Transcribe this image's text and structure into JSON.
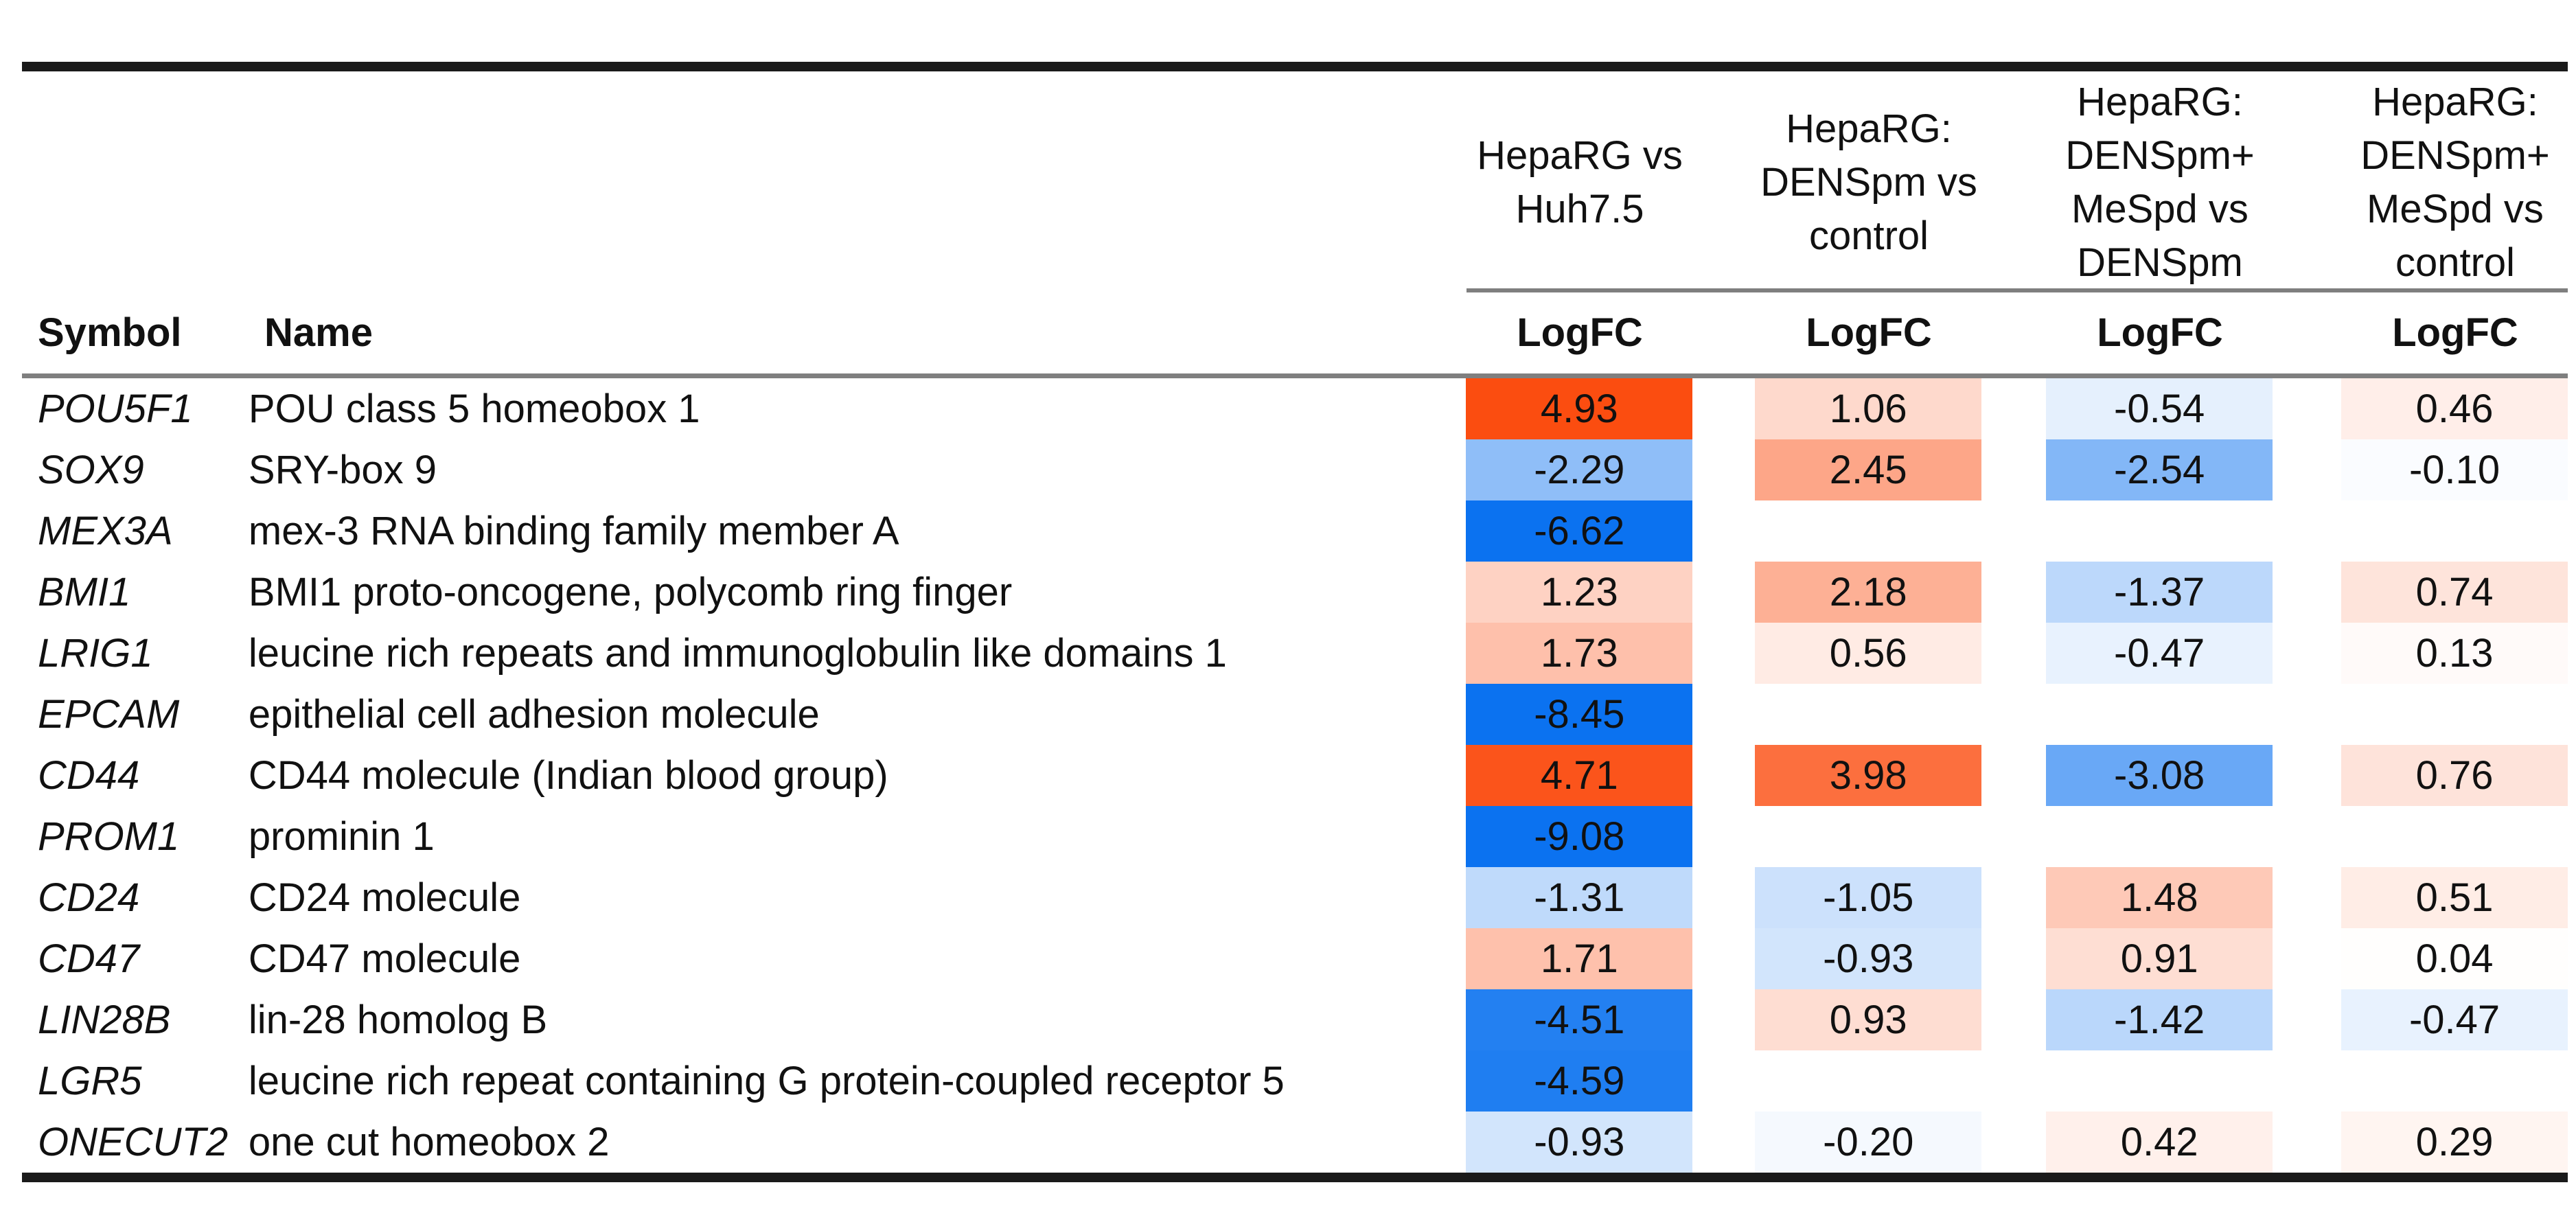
{
  "chart_data": {
    "type": "heatmap",
    "title": "",
    "value_metric": "LogFC",
    "header": {
      "symbol_label": "Symbol",
      "name_label": "Name",
      "groups": [
        {
          "label": "HepaRG vs Huh7.5",
          "lines": [
            "HepaRG vs",
            "Huh7.5"
          ],
          "metric": "LogFC"
        },
        {
          "label": "HepaRG: DENSpm vs control",
          "lines": [
            "HepaRG:",
            "DENSpm vs",
            "control"
          ],
          "metric": "LogFC"
        },
        {
          "label": "HepaRG: DENSpm+MeSpd vs DENSpm",
          "lines": [
            "HepaRG:",
            "DENSpm+",
            "MeSpd vs",
            "DENSpm"
          ],
          "metric": "LogFC"
        },
        {
          "label": "HepaRG: DENSpm+MeSpd vs control",
          "lines": [
            "HepaRG:",
            "DENSpm+",
            "MeSpd vs",
            "control"
          ],
          "metric": "LogFC"
        }
      ]
    },
    "rows": [
      {
        "symbol": "POU5F1",
        "name": "POU class 5 homeobox 1",
        "values": [
          4.93,
          1.06,
          -0.54,
          0.46
        ]
      },
      {
        "symbol": "SOX9",
        "name": "SRY-box 9",
        "values": [
          -2.29,
          2.45,
          -2.54,
          -0.1
        ]
      },
      {
        "symbol": "MEX3A",
        "name": "mex-3 RNA binding family member A",
        "values": [
          -6.62,
          null,
          null,
          null
        ]
      },
      {
        "symbol": "BMI1",
        "name": "BMI1 proto-oncogene, polycomb ring finger",
        "values": [
          1.23,
          2.18,
          -1.37,
          0.74
        ]
      },
      {
        "symbol": "LRIG1",
        "name": "leucine rich repeats and immunoglobulin like domains 1",
        "values": [
          1.73,
          0.56,
          -0.47,
          0.13
        ]
      },
      {
        "symbol": "EPCAM",
        "name": "epithelial cell adhesion molecule",
        "values": [
          -8.45,
          null,
          null,
          null
        ]
      },
      {
        "symbol": "CD44",
        "name": "CD44 molecule (Indian blood group)",
        "values": [
          4.71,
          3.98,
          -3.08,
          0.76
        ]
      },
      {
        "symbol": "PROM1",
        "name": "prominin 1",
        "values": [
          -9.08,
          null,
          null,
          null
        ]
      },
      {
        "symbol": "CD24",
        "name": "CD24 molecule",
        "values": [
          -1.31,
          -1.05,
          1.48,
          0.51
        ]
      },
      {
        "symbol": "CD47",
        "name": "CD47 molecule",
        "values": [
          1.71,
          -0.93,
          0.91,
          0.04
        ]
      },
      {
        "symbol": "LIN28B",
        "name": "lin-28 homolog B",
        "values": [
          -4.51,
          0.93,
          -1.42,
          -0.47
        ]
      },
      {
        "symbol": "LGR5",
        "name": "leucine rich repeat containing G protein-coupled receptor 5",
        "values": [
          -4.59,
          null,
          null,
          null
        ]
      },
      {
        "symbol": "ONECUT2",
        "name": "one cut homeobox 2",
        "values": [
          -0.93,
          -0.2,
          0.42,
          0.29
        ]
      }
    ],
    "color_scale": {
      "negative_max": "#0B72F0",
      "zero": "#FFFFFF",
      "positive_max": "#FB4A0D",
      "clamp_abs": 5
    },
    "layout": {
      "grid": false,
      "borders": "horizontal rules only",
      "value_format": "2 decimals"
    }
  }
}
